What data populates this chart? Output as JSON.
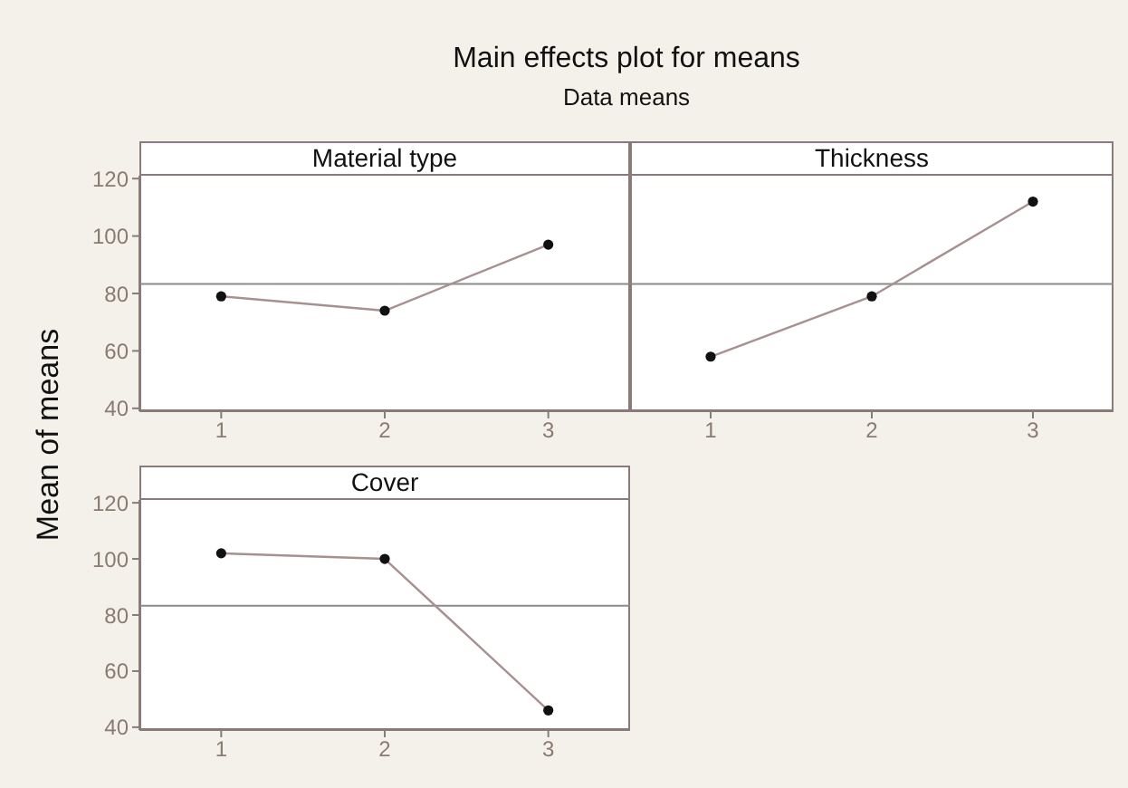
{
  "chart_data": [
    {
      "type": "line",
      "title": "Main effects plot for means",
      "subtitle": "Data means",
      "ylabel": "Mean of means",
      "annotations": [
        "Material type"
      ],
      "x": [
        1,
        2,
        3
      ],
      "series": [
        {
          "color": "#a89090",
          "values": [
            79,
            74,
            97
          ]
        }
      ],
      "xlim": [
        0.5,
        3.5
      ],
      "xticks": [
        1,
        2,
        3
      ],
      "ylim": [
        39,
        121
      ],
      "yticks": [
        40,
        60,
        80,
        100,
        120
      ],
      "ref_lines": [
        {
          "axis": "y",
          "value": 83.3,
          "label": null,
          "color": "#8a8a8a"
        }
      ],
      "marker": "circle",
      "grid": false
    },
    {
      "type": "line",
      "annotations": [
        "Thickness"
      ],
      "x": [
        1,
        2,
        3
      ],
      "series": [
        {
          "color": "#a89090",
          "values": [
            58,
            79,
            112
          ]
        }
      ],
      "xlim": [
        0.5,
        3.5
      ],
      "xticks": [
        1,
        2,
        3
      ],
      "ylim": [
        39,
        121
      ],
      "yticks": [
        40,
        60,
        80,
        100,
        120
      ],
      "ref_lines": [
        {
          "axis": "y",
          "value": 83.3,
          "label": null,
          "color": "#8a8a8a"
        }
      ],
      "marker": "circle",
      "grid": false,
      "tick_labels": "x"
    },
    {
      "type": "line",
      "annotations": [
        "Cover"
      ],
      "x": [
        1,
        2,
        3
      ],
      "series": [
        {
          "color": "#a89090",
          "values": [
            102,
            100,
            46
          ]
        }
      ],
      "xlim": [
        0.5,
        3.5
      ],
      "xticks": [
        1,
        2,
        3
      ],
      "ylim": [
        39,
        121
      ],
      "yticks": [
        40,
        60,
        80,
        100,
        120
      ],
      "ref_lines": [
        {
          "axis": "y",
          "value": 83.3,
          "label": null,
          "color": "#8a8a8a"
        }
      ],
      "marker": "circle",
      "grid": false
    }
  ]
}
